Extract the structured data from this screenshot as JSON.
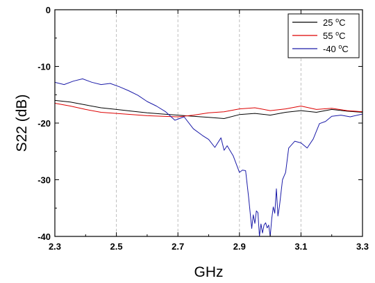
{
  "chart_data": {
    "type": "line",
    "title": "",
    "xlabel": "GHz",
    "ylabel": "S22 (dB)",
    "xlim": [
      2.3,
      3.3
    ],
    "ylim": [
      -40,
      0
    ],
    "xticks": [
      2.3,
      2.5,
      2.7,
      2.9,
      3.1,
      3.3
    ],
    "xtick_labels": [
      "2.3",
      "2.5",
      "2.7",
      "2.9",
      "3.1",
      "3.3"
    ],
    "yticks": [
      0,
      -10,
      -20,
      -30,
      -40
    ],
    "ytick_labels": [
      "0",
      "-10",
      "-20",
      "-30",
      "-40"
    ],
    "grid": "vertical-dashed",
    "legend_position": "top-right",
    "series": [
      {
        "name": "25 °C",
        "label_number": "25 ",
        "label_sup": "o",
        "label_unit": "C",
        "color": "#000000",
        "x": [
          2.3,
          2.35,
          2.4,
          2.45,
          2.5,
          2.55,
          2.6,
          2.65,
          2.7,
          2.75,
          2.8,
          2.85,
          2.9,
          2.95,
          3.0,
          3.05,
          3.1,
          3.15,
          3.2,
          3.25,
          3.3
        ],
        "y": [
          -16.0,
          -16.3,
          -16.8,
          -17.3,
          -17.6,
          -17.9,
          -18.2,
          -18.4,
          -18.6,
          -18.8,
          -19.0,
          -19.2,
          -18.5,
          -18.3,
          -18.6,
          -18.1,
          -17.8,
          -18.1,
          -17.6,
          -17.9,
          -18.1
        ]
      },
      {
        "name": "55 °C",
        "label_number": "55 ",
        "label_sup": "o",
        "label_unit": "C",
        "color": "#dd0000",
        "x": [
          2.3,
          2.35,
          2.4,
          2.45,
          2.5,
          2.55,
          2.6,
          2.65,
          2.7,
          2.75,
          2.8,
          2.85,
          2.9,
          2.95,
          3.0,
          3.05,
          3.1,
          3.15,
          3.2,
          3.25,
          3.3
        ],
        "y": [
          -16.5,
          -17.0,
          -17.6,
          -18.1,
          -18.3,
          -18.5,
          -18.7,
          -18.8,
          -18.9,
          -18.6,
          -18.2,
          -18.0,
          -17.5,
          -17.3,
          -17.8,
          -17.5,
          -17.0,
          -17.6,
          -17.4,
          -17.8,
          -18.0
        ]
      },
      {
        "name": "-40 °C",
        "label_number": "-40 ",
        "label_sup": "o",
        "label_unit": "C",
        "color": "#1a1aa8",
        "x": [
          2.3,
          2.33,
          2.36,
          2.39,
          2.42,
          2.45,
          2.48,
          2.51,
          2.54,
          2.57,
          2.6,
          2.63,
          2.66,
          2.69,
          2.72,
          2.75,
          2.78,
          2.8,
          2.82,
          2.84,
          2.85,
          2.86,
          2.88,
          2.9,
          2.91,
          2.92,
          2.93,
          2.94,
          2.945,
          2.95,
          2.955,
          2.96,
          2.965,
          2.97,
          2.975,
          2.98,
          2.985,
          2.99,
          2.995,
          3.0,
          3.005,
          3.01,
          3.015,
          3.02,
          3.025,
          3.03,
          3.04,
          3.05,
          3.06,
          3.08,
          3.1,
          3.12,
          3.14,
          3.16,
          3.18,
          3.2,
          3.23,
          3.26,
          3.3
        ],
        "y": [
          -12.8,
          -13.2,
          -12.6,
          -12.2,
          -12.8,
          -13.2,
          -13.0,
          -13.6,
          -14.3,
          -15.1,
          -16.2,
          -17.0,
          -18.0,
          -19.5,
          -18.9,
          -21.0,
          -22.2,
          -22.9,
          -24.3,
          -22.6,
          -24.8,
          -24.0,
          -25.8,
          -28.7,
          -28.3,
          -28.4,
          -33.2,
          -38.6,
          -36.2,
          -37.7,
          -35.5,
          -35.8,
          -40.0,
          -37.8,
          -39.4,
          -38.0,
          -37.6,
          -38.5,
          -38.0,
          -40.0,
          -36.9,
          -34.8,
          -35.9,
          -31.6,
          -36.4,
          -34.7,
          -30.0,
          -28.7,
          -24.4,
          -23.2,
          -23.5,
          -24.4,
          -22.8,
          -20.1,
          -19.7,
          -18.8,
          -18.6,
          -18.9,
          -18.4
        ]
      }
    ]
  }
}
